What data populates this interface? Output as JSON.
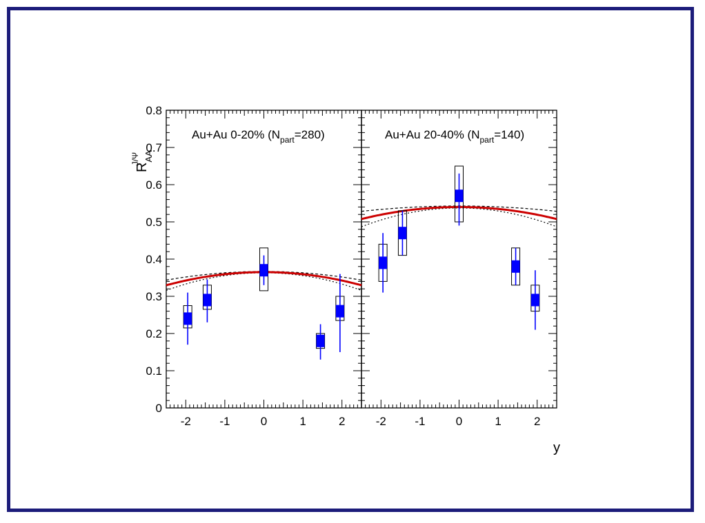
{
  "chart_data": {
    "type": "scatter",
    "ylabel_main": "R",
    "ylabel_sub": "AA",
    "ylabel_sup": "J/Ψ",
    "xlabel": "y",
    "ylim": [
      0,
      0.8
    ],
    "yticks": [
      "0",
      "0.1",
      "0.2",
      "0.3",
      "0.4",
      "0.5",
      "0.6",
      "0.7",
      "0.8"
    ],
    "xlim": [
      -2.5,
      2.5
    ],
    "xticks": [
      "-2",
      "-1",
      "0",
      "1",
      "2"
    ],
    "colors": {
      "marker": "#0000ff",
      "curve": "#cc0000",
      "band": "#000000",
      "frame": "#1c1c7a"
    },
    "panels": [
      {
        "label_pre": "Au+Au 0-20% (N",
        "label_sub": "part",
        "label_post": "=280)",
        "points": [
          {
            "x": -1.95,
            "y": 0.24,
            "stat_lo": 0.17,
            "stat_hi": 0.31,
            "sys_lo": 0.215,
            "sys_hi": 0.275
          },
          {
            "x": -1.45,
            "y": 0.29,
            "stat_lo": 0.23,
            "stat_hi": 0.345,
            "sys_lo": 0.265,
            "sys_hi": 0.33
          },
          {
            "x": 0.0,
            "y": 0.37,
            "stat_lo": 0.33,
            "stat_hi": 0.41,
            "sys_lo": 0.315,
            "sys_hi": 0.43
          },
          {
            "x": 1.45,
            "y": 0.18,
            "stat_lo": 0.13,
            "stat_hi": 0.225,
            "sys_lo": 0.16,
            "sys_hi": 0.2
          },
          {
            "x": 1.95,
            "y": 0.26,
            "stat_lo": 0.15,
            "stat_hi": 0.36,
            "sys_lo": 0.235,
            "sys_hi": 0.3
          }
        ],
        "curve_peak": 0.365,
        "curve_k": 0.0155,
        "band_width": 0.012
      },
      {
        "label_pre": "Au+Au 20-40% (N",
        "label_sub": "part",
        "label_post": "=140)",
        "points": [
          {
            "x": -1.95,
            "y": 0.39,
            "stat_lo": 0.31,
            "stat_hi": 0.47,
            "sys_lo": 0.34,
            "sys_hi": 0.44
          },
          {
            "x": -1.45,
            "y": 0.47,
            "stat_lo": 0.41,
            "stat_hi": 0.53,
            "sys_lo": 0.41,
            "sys_hi": 0.53
          },
          {
            "x": 0.0,
            "y": 0.57,
            "stat_lo": 0.49,
            "stat_hi": 0.63,
            "sys_lo": 0.5,
            "sys_hi": 0.65
          },
          {
            "x": 1.45,
            "y": 0.38,
            "stat_lo": 0.33,
            "stat_hi": 0.43,
            "sys_lo": 0.33,
            "sys_hi": 0.43
          },
          {
            "x": 1.95,
            "y": 0.29,
            "stat_lo": 0.21,
            "stat_hi": 0.37,
            "sys_lo": 0.26,
            "sys_hi": 0.33
          }
        ],
        "curve_peak": 0.54,
        "curve_k": 0.0096,
        "band_width": 0.018
      }
    ]
  }
}
